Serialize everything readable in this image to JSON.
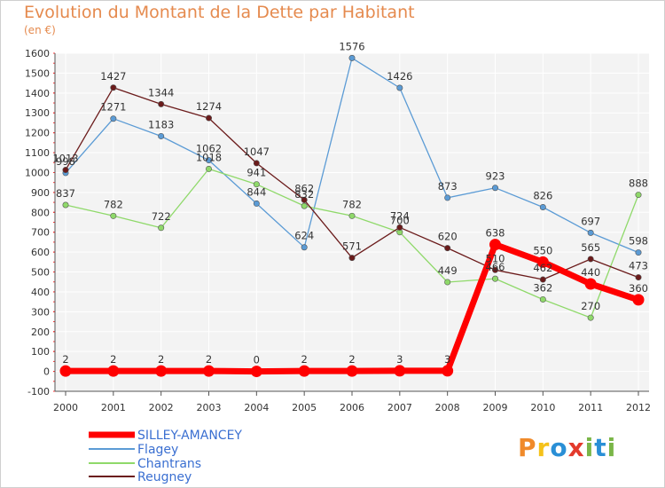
{
  "title": "Evolution du Montant de la Dette par Habitant",
  "unit": "(en €)",
  "logo": {
    "text": "Proxiti",
    "colors": [
      "#f08a2a",
      "#f5c21a",
      "#2a8fd6",
      "#e33a2c",
      "#7ab648",
      "#2a8fd6",
      "#7ab648"
    ]
  },
  "chart_data": {
    "type": "line",
    "x": [
      "2000",
      "2001",
      "2002",
      "2003",
      "2004",
      "2005",
      "2006",
      "2007",
      "2008",
      "2009",
      "2010",
      "2011",
      "2012"
    ],
    "ylim": [
      -100,
      1600
    ],
    "yticks": [
      -100,
      0,
      100,
      200,
      300,
      400,
      500,
      600,
      700,
      800,
      900,
      1000,
      1100,
      1200,
      1300,
      1400,
      1500,
      1600
    ],
    "grid": true,
    "legend": "bottom-left",
    "series": [
      {
        "name": "SILLEY-AMANCEY",
        "color": "#ff0000",
        "values": [
          2,
          2,
          2,
          2,
          0,
          2,
          2,
          3,
          3,
          638,
          550,
          440,
          360
        ],
        "labels": [
          "2",
          "2",
          "2",
          "2",
          "0",
          "2",
          "2",
          "3",
          "3",
          "638",
          "550",
          "440",
          "360"
        ]
      },
      {
        "name": "Flagey",
        "color": "#5b9bd5",
        "values": [
          998,
          1271,
          1183,
          1062,
          844,
          624,
          1576,
          1426,
          873,
          923,
          826,
          697,
          598
        ],
        "labels": [
          "998",
          "1271",
          "1183",
          "1062",
          "844",
          "624",
          "1576",
          "1426",
          "873",
          "923",
          "826",
          "697",
          "598"
        ]
      },
      {
        "name": "Chantrans",
        "color": "#8fd96a",
        "values": [
          837,
          782,
          722,
          1018,
          941,
          832,
          782,
          700,
          449,
          466,
          362,
          270,
          888
        ],
        "labels": [
          "837",
          "782",
          "722",
          "1018",
          "941",
          "832",
          "782",
          "700",
          "449",
          "466",
          "362",
          "270",
          "888"
        ]
      },
      {
        "name": "Reugney",
        "color": "#6b1b1b",
        "values": [
          1013,
          1427,
          1344,
          1274,
          1047,
          862,
          571,
          724,
          620,
          510,
          462,
          565,
          473
        ],
        "labels": [
          "1013",
          "1427",
          "1344",
          "1274",
          "1047",
          "862",
          "571",
          "724",
          "620",
          "510",
          "462",
          "565",
          "473"
        ]
      }
    ]
  }
}
